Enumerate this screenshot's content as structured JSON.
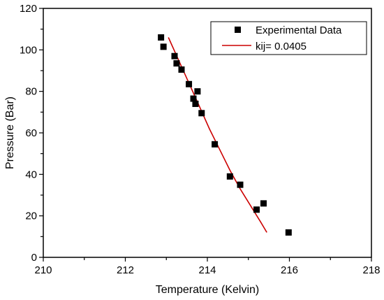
{
  "chart_data": {
    "type": "scatter",
    "xlabel": "Temperature (Kelvin)",
    "ylabel": "Pressure (Bar)",
    "xlim": [
      210,
      218
    ],
    "ylim": [
      0,
      120
    ],
    "x_ticks": [
      210,
      212,
      214,
      216,
      218
    ],
    "y_ticks": [
      0,
      20,
      40,
      60,
      80,
      100,
      120
    ],
    "grid": false,
    "legend_position": "top-right",
    "series": [
      {
        "name": "Experimental Data",
        "type": "scatter",
        "marker": "square",
        "color": "#000000",
        "points": [
          {
            "x": 212.87,
            "y": 106
          },
          {
            "x": 212.93,
            "y": 101.5
          },
          {
            "x": 213.2,
            "y": 97
          },
          {
            "x": 213.25,
            "y": 93.5
          },
          {
            "x": 213.37,
            "y": 90.5
          },
          {
            "x": 213.55,
            "y": 83.5
          },
          {
            "x": 213.66,
            "y": 76.5
          },
          {
            "x": 213.71,
            "y": 74
          },
          {
            "x": 213.76,
            "y": 80
          },
          {
            "x": 213.86,
            "y": 69.5
          },
          {
            "x": 214.18,
            "y": 54.5
          },
          {
            "x": 214.55,
            "y": 39
          },
          {
            "x": 214.8,
            "y": 35
          },
          {
            "x": 215.2,
            "y": 23
          },
          {
            "x": 215.37,
            "y": 26
          },
          {
            "x": 215.98,
            "y": 12
          }
        ]
      },
      {
        "name": "kij= 0.0405",
        "type": "line",
        "color": "#cc0000",
        "points": [
          {
            "x": 213.05,
            "y": 106
          },
          {
            "x": 213.3,
            "y": 95
          },
          {
            "x": 213.55,
            "y": 84
          },
          {
            "x": 213.8,
            "y": 73
          },
          {
            "x": 214.05,
            "y": 62
          },
          {
            "x": 214.3,
            "y": 52
          },
          {
            "x": 214.55,
            "y": 42
          },
          {
            "x": 214.8,
            "y": 33
          },
          {
            "x": 215.05,
            "y": 25
          },
          {
            "x": 215.3,
            "y": 17
          },
          {
            "x": 215.45,
            "y": 12
          }
        ]
      }
    ]
  }
}
